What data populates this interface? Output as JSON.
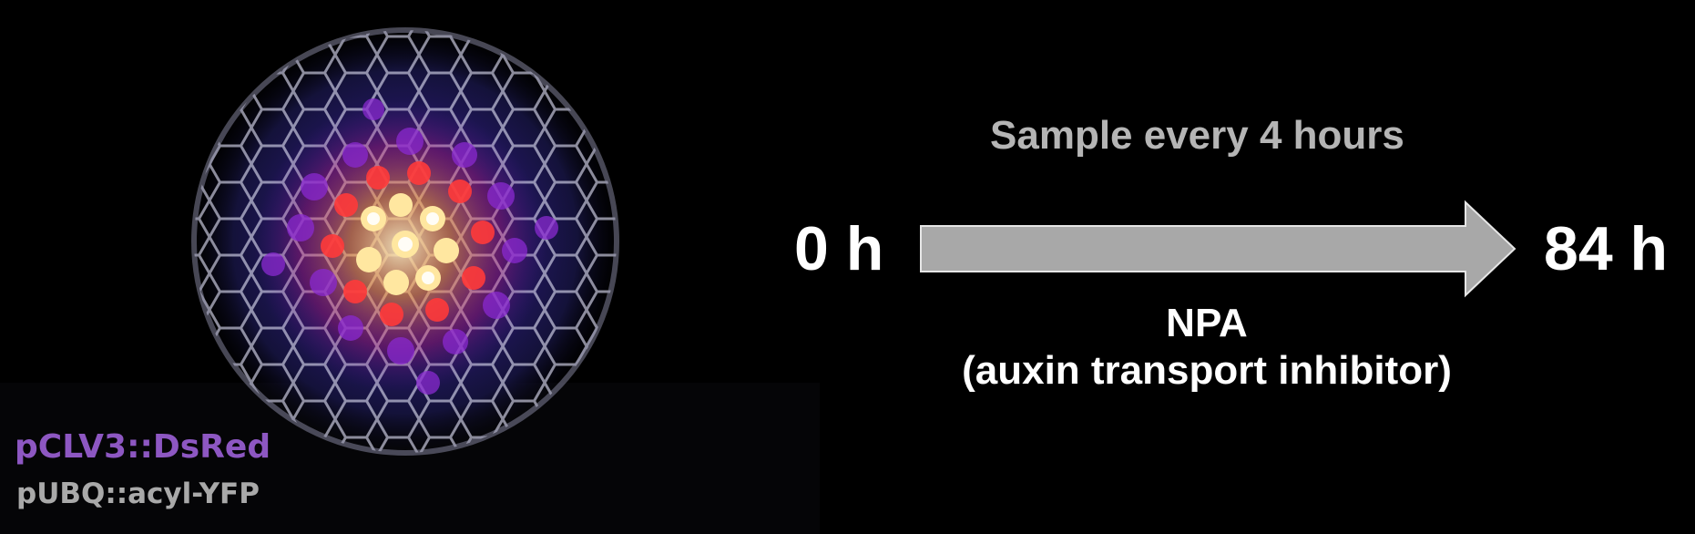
{
  "figure": {
    "sample_text": "Sample every 4 hours",
    "start_time": "0 h",
    "end_time": "84 h",
    "treatment": {
      "drug": "NPA",
      "description": "(auxin transport inhibitor)"
    },
    "labels": {
      "reporter_red": "pCLV3::DsRed",
      "reporter_membrane": "pUBQ::acyl-YFP"
    },
    "colors": {
      "background": "#000000",
      "reporter_red": "#8d57c2",
      "reporter_membrane": "#a9a9a9",
      "sample_text": "#b5b5b5",
      "arrow_fill": "#a8a8a8",
      "arrow_stroke": "#e6e6e6"
    }
  }
}
